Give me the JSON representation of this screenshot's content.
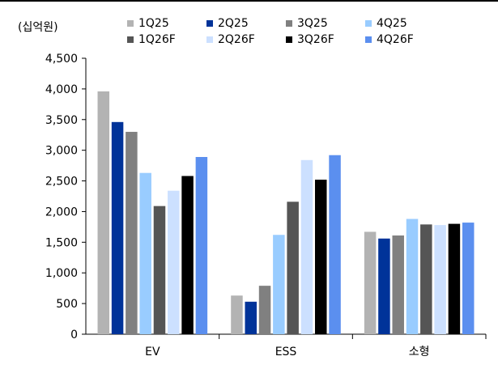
{
  "unit_label": "(십억원)",
  "chart_data": {
    "type": "bar",
    "categories": [
      "EV",
      "ESS",
      "소형"
    ],
    "series": [
      {
        "name": "1Q25",
        "color": "#b3b3b3",
        "values": [
          3960,
          630,
          1670
        ]
      },
      {
        "name": "2Q25",
        "color": "#003399",
        "values": [
          3460,
          530,
          1560
        ]
      },
      {
        "name": "3Q25",
        "color": "#808080",
        "values": [
          3300,
          790,
          1610
        ]
      },
      {
        "name": "4Q25",
        "color": "#99ccff",
        "values": [
          2630,
          1620,
          1880
        ]
      },
      {
        "name": "1Q26F",
        "color": "#555555",
        "values": [
          2090,
          2160,
          1790
        ]
      },
      {
        "name": "2Q26F",
        "color": "#cce0ff",
        "values": [
          2340,
          2840,
          1780
        ]
      },
      {
        "name": "3Q26F",
        "color": "#000000",
        "values": [
          2580,
          2520,
          1800
        ]
      },
      {
        "name": "4Q26F",
        "color": "#5b8fef",
        "values": [
          2890,
          2920,
          1820
        ]
      }
    ],
    "ylim": [
      0,
      4500
    ],
    "yticks": [
      "0",
      "500",
      "1,000",
      "1,500",
      "2,000",
      "2,500",
      "3,000",
      "3,500",
      "4,000",
      "4,500"
    ],
    "grid": false,
    "legend_position": "top"
  }
}
